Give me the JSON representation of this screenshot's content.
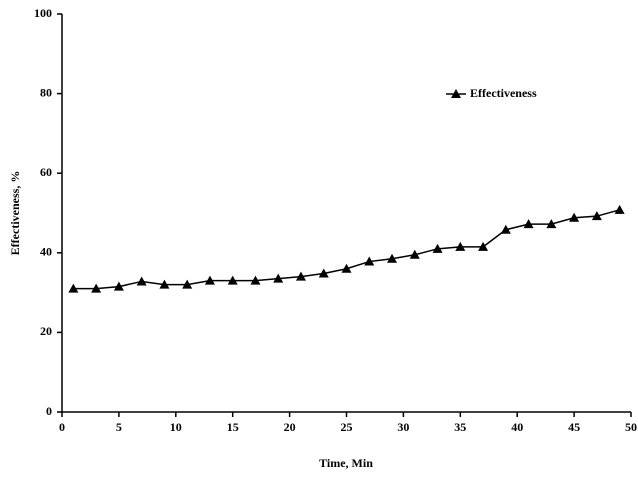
{
  "chart_data": {
    "type": "line",
    "x_label": "Time, Min",
    "y_label": "Effectiveness, %",
    "x": [
      1,
      3,
      5,
      7,
      9,
      11,
      13,
      15,
      17,
      19,
      21,
      23,
      25,
      27,
      29,
      31,
      33,
      35,
      37,
      39,
      41,
      43,
      45,
      47,
      49
    ],
    "series": [
      {
        "name": "Effectiveness",
        "color": "#000000",
        "values": [
          31,
          31,
          31.5,
          32.8,
          32,
          32,
          33,
          33,
          33,
          33.5,
          34,
          34.8,
          36,
          37.8,
          38.5,
          39.5,
          41,
          41.5,
          41.5,
          45.8,
          47.2,
          47.2,
          48.8,
          49.2,
          50.8
        ]
      }
    ],
    "xlim": [
      0,
      50
    ],
    "xticks": [
      0,
      5,
      10,
      15,
      20,
      25,
      30,
      35,
      40,
      45,
      50
    ],
    "ylim": [
      0,
      100
    ],
    "yticks": [
      0,
      20,
      40,
      60,
      80,
      100
    ],
    "legend": "upper right",
    "grid": false
  }
}
